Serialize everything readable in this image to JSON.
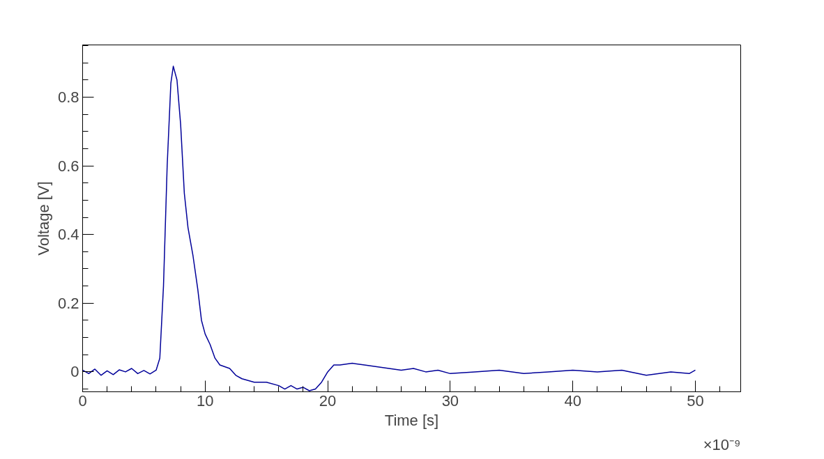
{
  "chart_data": {
    "type": "line",
    "xlabel": "Time [s]",
    "ylabel": "Voltage [V]",
    "annotations": [
      "×10⁻⁹"
    ],
    "xlim": [
      0,
      53.7
    ],
    "xticks": [
      0,
      10,
      20,
      30,
      40,
      50
    ],
    "ylim": [
      -0.058,
      0.952
    ],
    "yticks": [
      0,
      0.2,
      0.4,
      0.6,
      0.8
    ],
    "grid": false,
    "marker": "none",
    "line_style": "solid",
    "series": [
      {
        "color": "#000099",
        "x": [
          0,
          0.5,
          1,
          1.5,
          2,
          2.5,
          3,
          3.5,
          4,
          4.5,
          5,
          5.5,
          6,
          6.3,
          6.6,
          6.9,
          7.2,
          7.4,
          7.7,
          8.0,
          8.3,
          8.6,
          9.0,
          9.4,
          9.7,
          10,
          10.4,
          10.8,
          11.2,
          12,
          12.5,
          13,
          14,
          15,
          16,
          16.5,
          17,
          17.5,
          18,
          18.5,
          19,
          19.5,
          20,
          20.5,
          21,
          22,
          23,
          24,
          25,
          26,
          27,
          28,
          29,
          30,
          32,
          34,
          36,
          38,
          40,
          42,
          44,
          46,
          48,
          49.5,
          50
        ],
        "values": [
          0.005,
          -0.005,
          0.008,
          -0.01,
          0.003,
          -0.008,
          0.006,
          0,
          0.01,
          -0.005,
          0.004,
          -0.006,
          0.005,
          0.04,
          0.25,
          0.6,
          0.84,
          0.89,
          0.85,
          0.72,
          0.52,
          0.42,
          0.34,
          0.24,
          0.15,
          0.11,
          0.08,
          0.04,
          0.02,
          0.01,
          -0.01,
          -0.02,
          -0.03,
          -0.03,
          -0.04,
          -0.05,
          -0.04,
          -0.05,
          -0.045,
          -0.055,
          -0.05,
          -0.03,
          0,
          0.02,
          0.02,
          0.025,
          0.02,
          0.015,
          0.01,
          0.005,
          0.01,
          0,
          0.005,
          -0.005,
          0,
          0.005,
          -0.005,
          0,
          0.005,
          0,
          0.005,
          -0.01,
          0,
          -0.005,
          0.005
        ]
      }
    ]
  }
}
